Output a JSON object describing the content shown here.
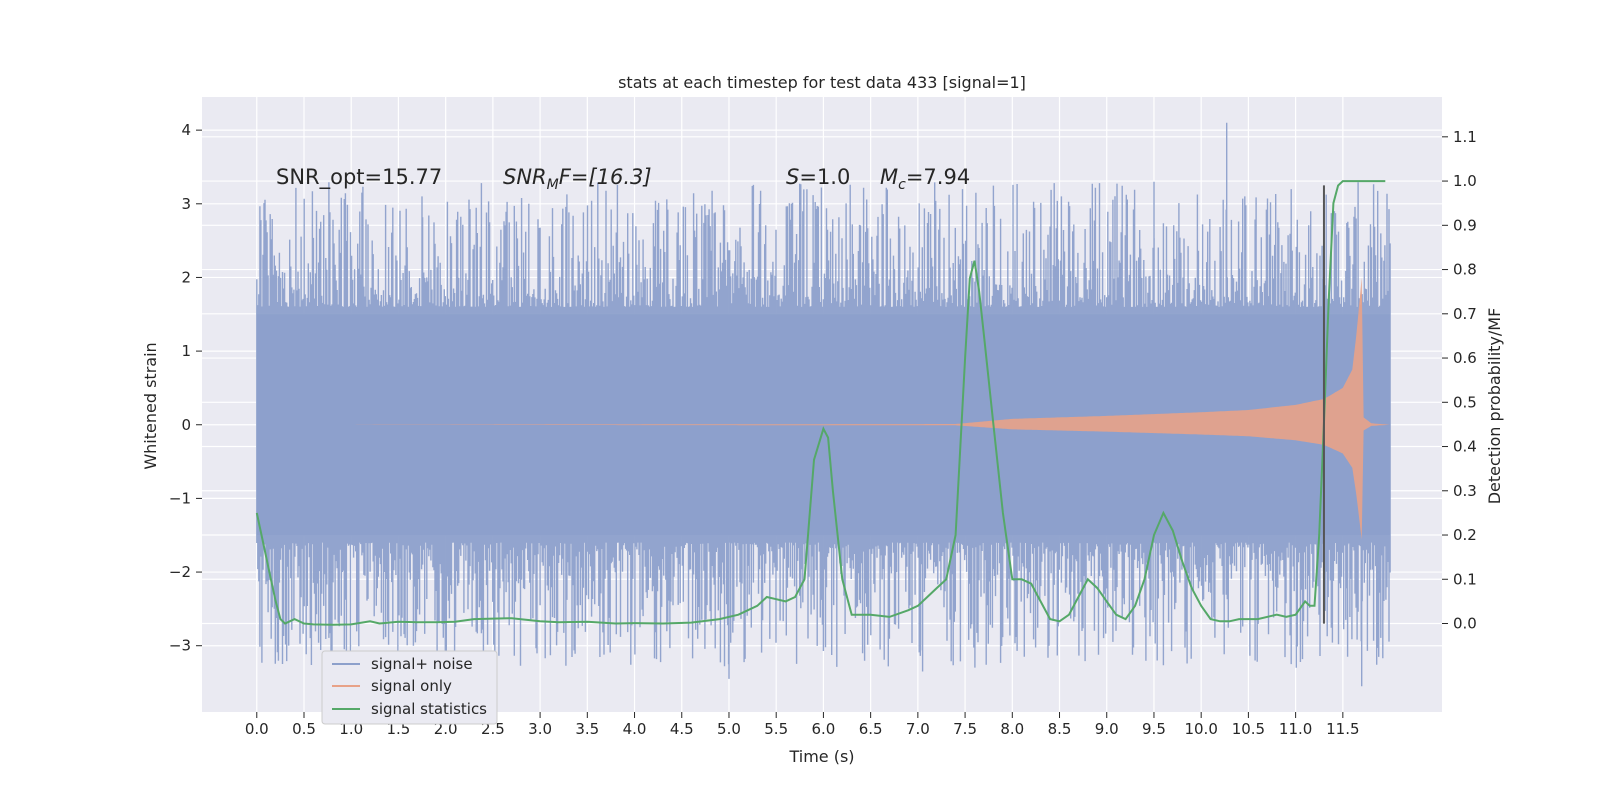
{
  "chart_data": {
    "type": "line",
    "title": "stats at each timestep for test data 433 [signal=1]",
    "xlabel": "Time (s)",
    "ylabel_left": "Whitened strain",
    "ylabel_right": "Detection probability/MF",
    "xlim": [
      -0.58,
      12.55
    ],
    "ylim_left": [
      -3.9,
      4.45
    ],
    "ylim_right": [
      -0.2,
      1.19
    ],
    "x_ticks": [
      "0.0",
      "0.5",
      "1.0",
      "1.5",
      "2.0",
      "2.5",
      "3.0",
      "3.5",
      "4.0",
      "4.5",
      "5.0",
      "5.5",
      "6.0",
      "6.5",
      "7.0",
      "7.5",
      "8.0",
      "8.5",
      "9.0",
      "9.5",
      "10.0",
      "10.5",
      "11.0",
      "11.5"
    ],
    "y_ticks_left": [
      "4",
      "3",
      "2",
      "1",
      "0",
      "−1",
      "−2",
      "−3"
    ],
    "y_ticks_right": [
      "1.1",
      "1.0",
      "0.9",
      "0.8",
      "0.7",
      "0.6",
      "0.5",
      "0.4",
      "0.3",
      "0.2",
      "0.1",
      "0.0"
    ],
    "grid": true,
    "legend_position": "lower-left",
    "annotations": {
      "snr_opt": "SNR_opt=15.77",
      "snr_mf_main": "SNR",
      "snr_mf_sub": "M",
      "snr_mf_rest": "F=[16.3]",
      "s_italic": "S",
      "s_rest": "=1.0",
      "mc_italic": "M",
      "mc_sub": "c",
      "mc_rest": "=7.94"
    },
    "vertical_marker_x": 11.3,
    "vertical_marker_ylim": [
      -2.7,
      3.25
    ],
    "series": [
      {
        "name": "signal+ noise",
        "axis": "left",
        "color": "#8da0cb",
        "x_range": [
          0.0,
          12.0
        ],
        "core_band": [
          -1.5,
          1.5
        ],
        "spike_range": [
          -3.55,
          4.1
        ]
      },
      {
        "name": "signal only",
        "axis": "left",
        "color": "#e8a288",
        "envelope": {
          "x": [
            0,
            7.4,
            8.0,
            9.0,
            10.0,
            10.5,
            11.0,
            11.3,
            11.5,
            11.6,
            11.65,
            11.7,
            11.72,
            11.8,
            12.0
          ],
          "amp": [
            0,
            0.01,
            0.08,
            0.12,
            0.17,
            0.2,
            0.27,
            0.35,
            0.5,
            0.75,
            1.3,
            2.0,
            0.1,
            0.02,
            0.0
          ]
        }
      },
      {
        "name": "signal statistics",
        "axis": "right",
        "color": "#55a868",
        "x": [
          0.0,
          0.05,
          0.1,
          0.15,
          0.2,
          0.25,
          0.3,
          0.35,
          0.4,
          0.5,
          0.6,
          0.8,
          1.0,
          1.2,
          1.3,
          1.5,
          1.7,
          1.9,
          2.1,
          2.3,
          2.5,
          2.7,
          3.0,
          3.2,
          3.5,
          3.8,
          4.0,
          4.3,
          4.6,
          4.9,
          5.1,
          5.2,
          5.3,
          5.4,
          5.5,
          5.6,
          5.7,
          5.8,
          5.9,
          6.0,
          6.05,
          6.1,
          6.2,
          6.3,
          6.5,
          6.7,
          6.9,
          7.0,
          7.1,
          7.2,
          7.3,
          7.4,
          7.5,
          7.55,
          7.6,
          7.65,
          7.7,
          7.8,
          7.9,
          8.0,
          8.1,
          8.2,
          8.3,
          8.4,
          8.5,
          8.6,
          8.7,
          8.8,
          8.9,
          9.0,
          9.1,
          9.2,
          9.3,
          9.4,
          9.5,
          9.6,
          9.7,
          9.8,
          9.9,
          10.0,
          10.1,
          10.2,
          10.3,
          10.4,
          10.6,
          10.8,
          10.9,
          11.0,
          11.1,
          11.15,
          11.2,
          11.25,
          11.3,
          11.35,
          11.4,
          11.45,
          11.5,
          11.6,
          11.7,
          11.8,
          11.9,
          11.95
        ],
        "y": [
          0.25,
          0.2,
          0.15,
          0.1,
          0.05,
          0.01,
          0.0,
          0.005,
          0.01,
          0.0,
          -0.002,
          -0.003,
          -0.002,
          0.005,
          0.0,
          0.004,
          0.003,
          0.003,
          0.004,
          0.01,
          0.011,
          0.012,
          0.005,
          0.003,
          0.004,
          0.0,
          0.001,
          0.0,
          0.002,
          0.01,
          0.02,
          0.03,
          0.04,
          0.06,
          0.055,
          0.05,
          0.06,
          0.1,
          0.37,
          0.44,
          0.42,
          0.3,
          0.1,
          0.02,
          0.02,
          0.015,
          0.03,
          0.04,
          0.06,
          0.08,
          0.1,
          0.2,
          0.6,
          0.78,
          0.82,
          0.75,
          0.65,
          0.45,
          0.25,
          0.1,
          0.1,
          0.09,
          0.05,
          0.01,
          0.005,
          0.02,
          0.06,
          0.1,
          0.08,
          0.05,
          0.02,
          0.01,
          0.04,
          0.1,
          0.2,
          0.25,
          0.21,
          0.14,
          0.08,
          0.04,
          0.01,
          0.005,
          0.005,
          0.01,
          0.01,
          0.02,
          0.015,
          0.02,
          0.05,
          0.04,
          0.04,
          0.2,
          0.45,
          0.73,
          0.95,
          0.99,
          1.0,
          1.0,
          1.0,
          1.0,
          1.0,
          1.0
        ]
      }
    ]
  }
}
